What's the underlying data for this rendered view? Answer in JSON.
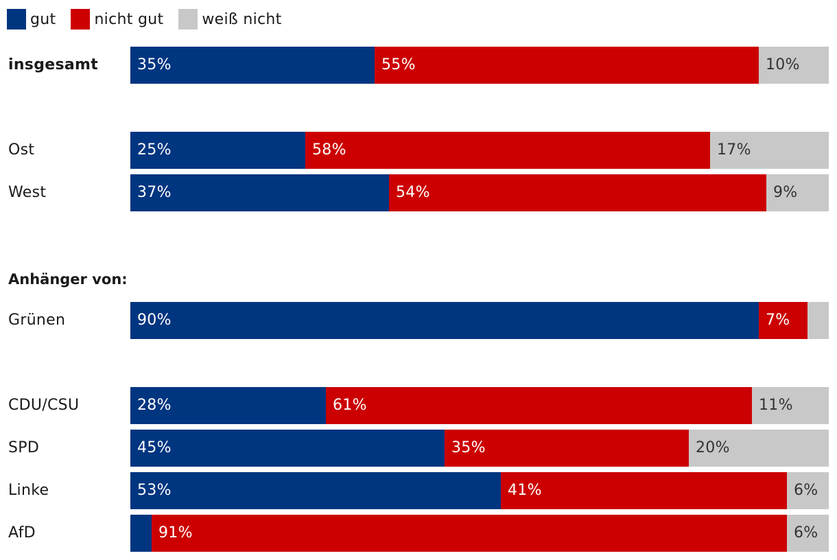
{
  "legend": [
    {
      "label": "gut",
      "color": "#003580"
    },
    {
      "label": "nicht gut",
      "color": "#cc0000"
    },
    {
      "label": "weiß nicht",
      "color": "#c8c8c8"
    }
  ],
  "section_label": "Anhänger von:",
  "chart_data": {
    "type": "bar",
    "orientation": "horizontal",
    "stacked": true,
    "xlim": [
      0,
      100
    ],
    "categories": [
      "insgesamt",
      "Ost",
      "West",
      "Grünen",
      "CDU/CSU",
      "SPD",
      "Linke",
      "AfD"
    ],
    "series": [
      {
        "name": "gut",
        "color": "#003580",
        "values": [
          35,
          25,
          37,
          90,
          28,
          45,
          53,
          3
        ],
        "labels": [
          "35%",
          "25%",
          "37%",
          "90%",
          "28%",
          "45%",
          "53%",
          ""
        ]
      },
      {
        "name": "nicht gut",
        "color": "#cc0000",
        "values": [
          55,
          58,
          54,
          7,
          61,
          35,
          41,
          91
        ],
        "labels": [
          "55%",
          "58%",
          "54%",
          "7%",
          "61%",
          "35%",
          "41%",
          "91%"
        ]
      },
      {
        "name": "weiß nicht",
        "color": "#c8c8c8",
        "values": [
          10,
          17,
          9,
          3,
          11,
          20,
          6,
          6
        ],
        "labels": [
          "10%",
          "17%",
          "9%",
          "",
          "11%",
          "20%",
          "6%",
          "6%"
        ]
      }
    ]
  }
}
